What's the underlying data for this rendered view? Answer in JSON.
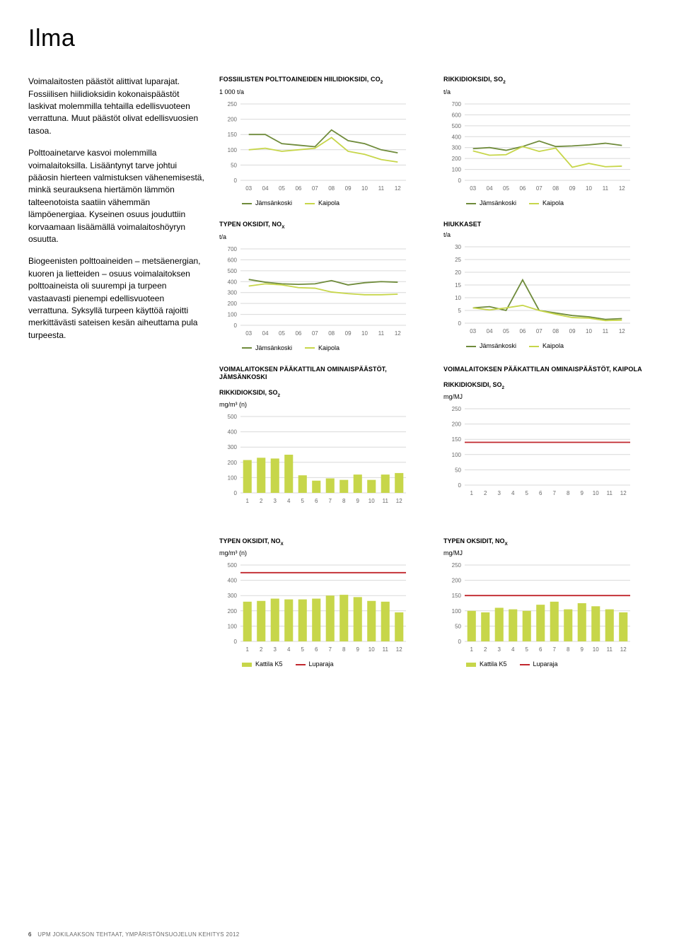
{
  "colors": {
    "series1": "#6f8b3b",
    "series2": "#c7d64a",
    "limit": "#c1272d",
    "grid": "#d9d9d9",
    "axis": "#6a6a6a",
    "text": "#000000"
  },
  "title": "Ilma",
  "body_paragraphs": [
    "Voimalaitosten päästöt alittivat luparajat. Fossiilisen hiilidioksidin kokonaispäästöt laskivat molemmilla tehtailla edellisvuoteen verrattuna. Muut päästöt olivat edellisvuosien tasoa.",
    "Polttoainetarve kasvoi molemmilla voimalaitoksilla. Lisääntynyt tarve johtui pääosin hierteen valmistuksen vähenemisestä, minkä seurauksena hiertämön lämmön talteenotoista saatiin vähemmän lämpöenergiaa. Kyseinen osuus jouduttiin korvaamaan lisäämällä voimalaitoshöyryn osuutta.",
    "Biogeenisten polttoaineiden – metsäenergian, kuoren ja lietteiden – osuus voimalaitoksen polttoaineista oli suurempi ja turpeen vastaavasti pienempi edellisvuoteen verrattuna. Syksyllä turpeen käyttöä rajoitti merkittävästi sateisen kesän aiheuttama pula turpeesta."
  ],
  "year_labels": [
    "03",
    "04",
    "05",
    "06",
    "07",
    "08",
    "09",
    "10",
    "11",
    "12"
  ],
  "month_labels": [
    "1",
    "2",
    "3",
    "4",
    "5",
    "6",
    "7",
    "8",
    "9",
    "10",
    "11",
    "12"
  ],
  "legend_series": {
    "s1": "Jämsänkoski",
    "s2": "Kaipola"
  },
  "legend_bar": {
    "s1": "Kattila K5",
    "s2": "Luparaja"
  },
  "charts": {
    "co2": {
      "title": "FOSSIILISTEN POLTTOAINEIDEN HIILIDIOKSIDI, CO",
      "title_sub": "2",
      "unit": "1 000 t/a",
      "ymax": 250,
      "ystep": 50,
      "s1": [
        150,
        150,
        120,
        115,
        110,
        165,
        130,
        120,
        100,
        90
      ],
      "s2": [
        100,
        105,
        95,
        100,
        105,
        140,
        95,
        85,
        68,
        60
      ]
    },
    "so2": {
      "title": "RIKKIDIOKSIDI, SO",
      "title_sub": "2",
      "unit": "t/a",
      "ymax": 700,
      "ystep": 100,
      "s1": [
        290,
        300,
        275,
        310,
        360,
        310,
        315,
        325,
        340,
        320
      ],
      "s2": [
        270,
        230,
        235,
        310,
        265,
        295,
        120,
        155,
        125,
        130
      ]
    },
    "nox": {
      "title": "TYPEN OKSIDIT, NO",
      "title_sub": "X",
      "unit": "t/a",
      "ymax": 700,
      "ystep": 100,
      "s1": [
        420,
        395,
        380,
        375,
        380,
        410,
        370,
        390,
        400,
        395
      ],
      "s2": [
        360,
        380,
        370,
        345,
        340,
        305,
        290,
        280,
        280,
        285
      ]
    },
    "hiuk": {
      "title": "HIUKKASET",
      "unit": "t/a",
      "ymax": 30,
      "ystep": 5,
      "s1": [
        6,
        6.5,
        5,
        17,
        5,
        4,
        3,
        2.5,
        1.5,
        1.8
      ],
      "s2": [
        6,
        5.2,
        6,
        7,
        5,
        3.5,
        2.2,
        2,
        1,
        1.2
      ]
    },
    "jk_so2": {
      "section": "VOIMALAITOKSEN PÄÄKATTILAN OMINAISPÄÄSTÖT, JÄMSÄNKOSKI",
      "title": "RIKKIDIOKSIDI, SO",
      "title_sub": "2",
      "unit": "mg/m³ (n)",
      "ymax": 500,
      "ystep": 100,
      "bars": [
        215,
        230,
        225,
        250,
        115,
        80,
        95,
        85,
        120,
        85,
        120,
        130
      ],
      "limit": null
    },
    "kp_so2": {
      "section": "VOIMALAITOKSEN PÄÄKATTILAN OMINAISPÄÄSTÖT, KAIPOLA",
      "title": "RIKKIDIOKSIDI, SO",
      "title_sub": "2",
      "unit": "mg/MJ",
      "ymax": 250,
      "ystep": 50,
      "bars": [],
      "limit": 140
    },
    "jk_nox": {
      "title": "TYPEN OKSIDIT, NO",
      "title_sub": "X",
      "unit": "mg/m³ (n)",
      "ymax": 500,
      "ystep": 100,
      "bars": [
        260,
        265,
        280,
        275,
        275,
        280,
        300,
        305,
        290,
        265,
        260,
        190
      ],
      "limit": 450
    },
    "kp_nox": {
      "title": "TYPEN OKSIDIT, NO",
      "title_sub": "X",
      "unit": "mg/MJ",
      "ymax": 250,
      "ystep": 50,
      "bars": [
        100,
        95,
        110,
        105,
        100,
        120,
        130,
        105,
        125,
        115,
        105,
        95
      ],
      "limit": 150
    }
  },
  "footer": {
    "page": "6",
    "text": "UPM JOKILAAKSON TEHTAAT, YMPÄRISTÖNSUOJELUN KEHITYS 2012"
  }
}
